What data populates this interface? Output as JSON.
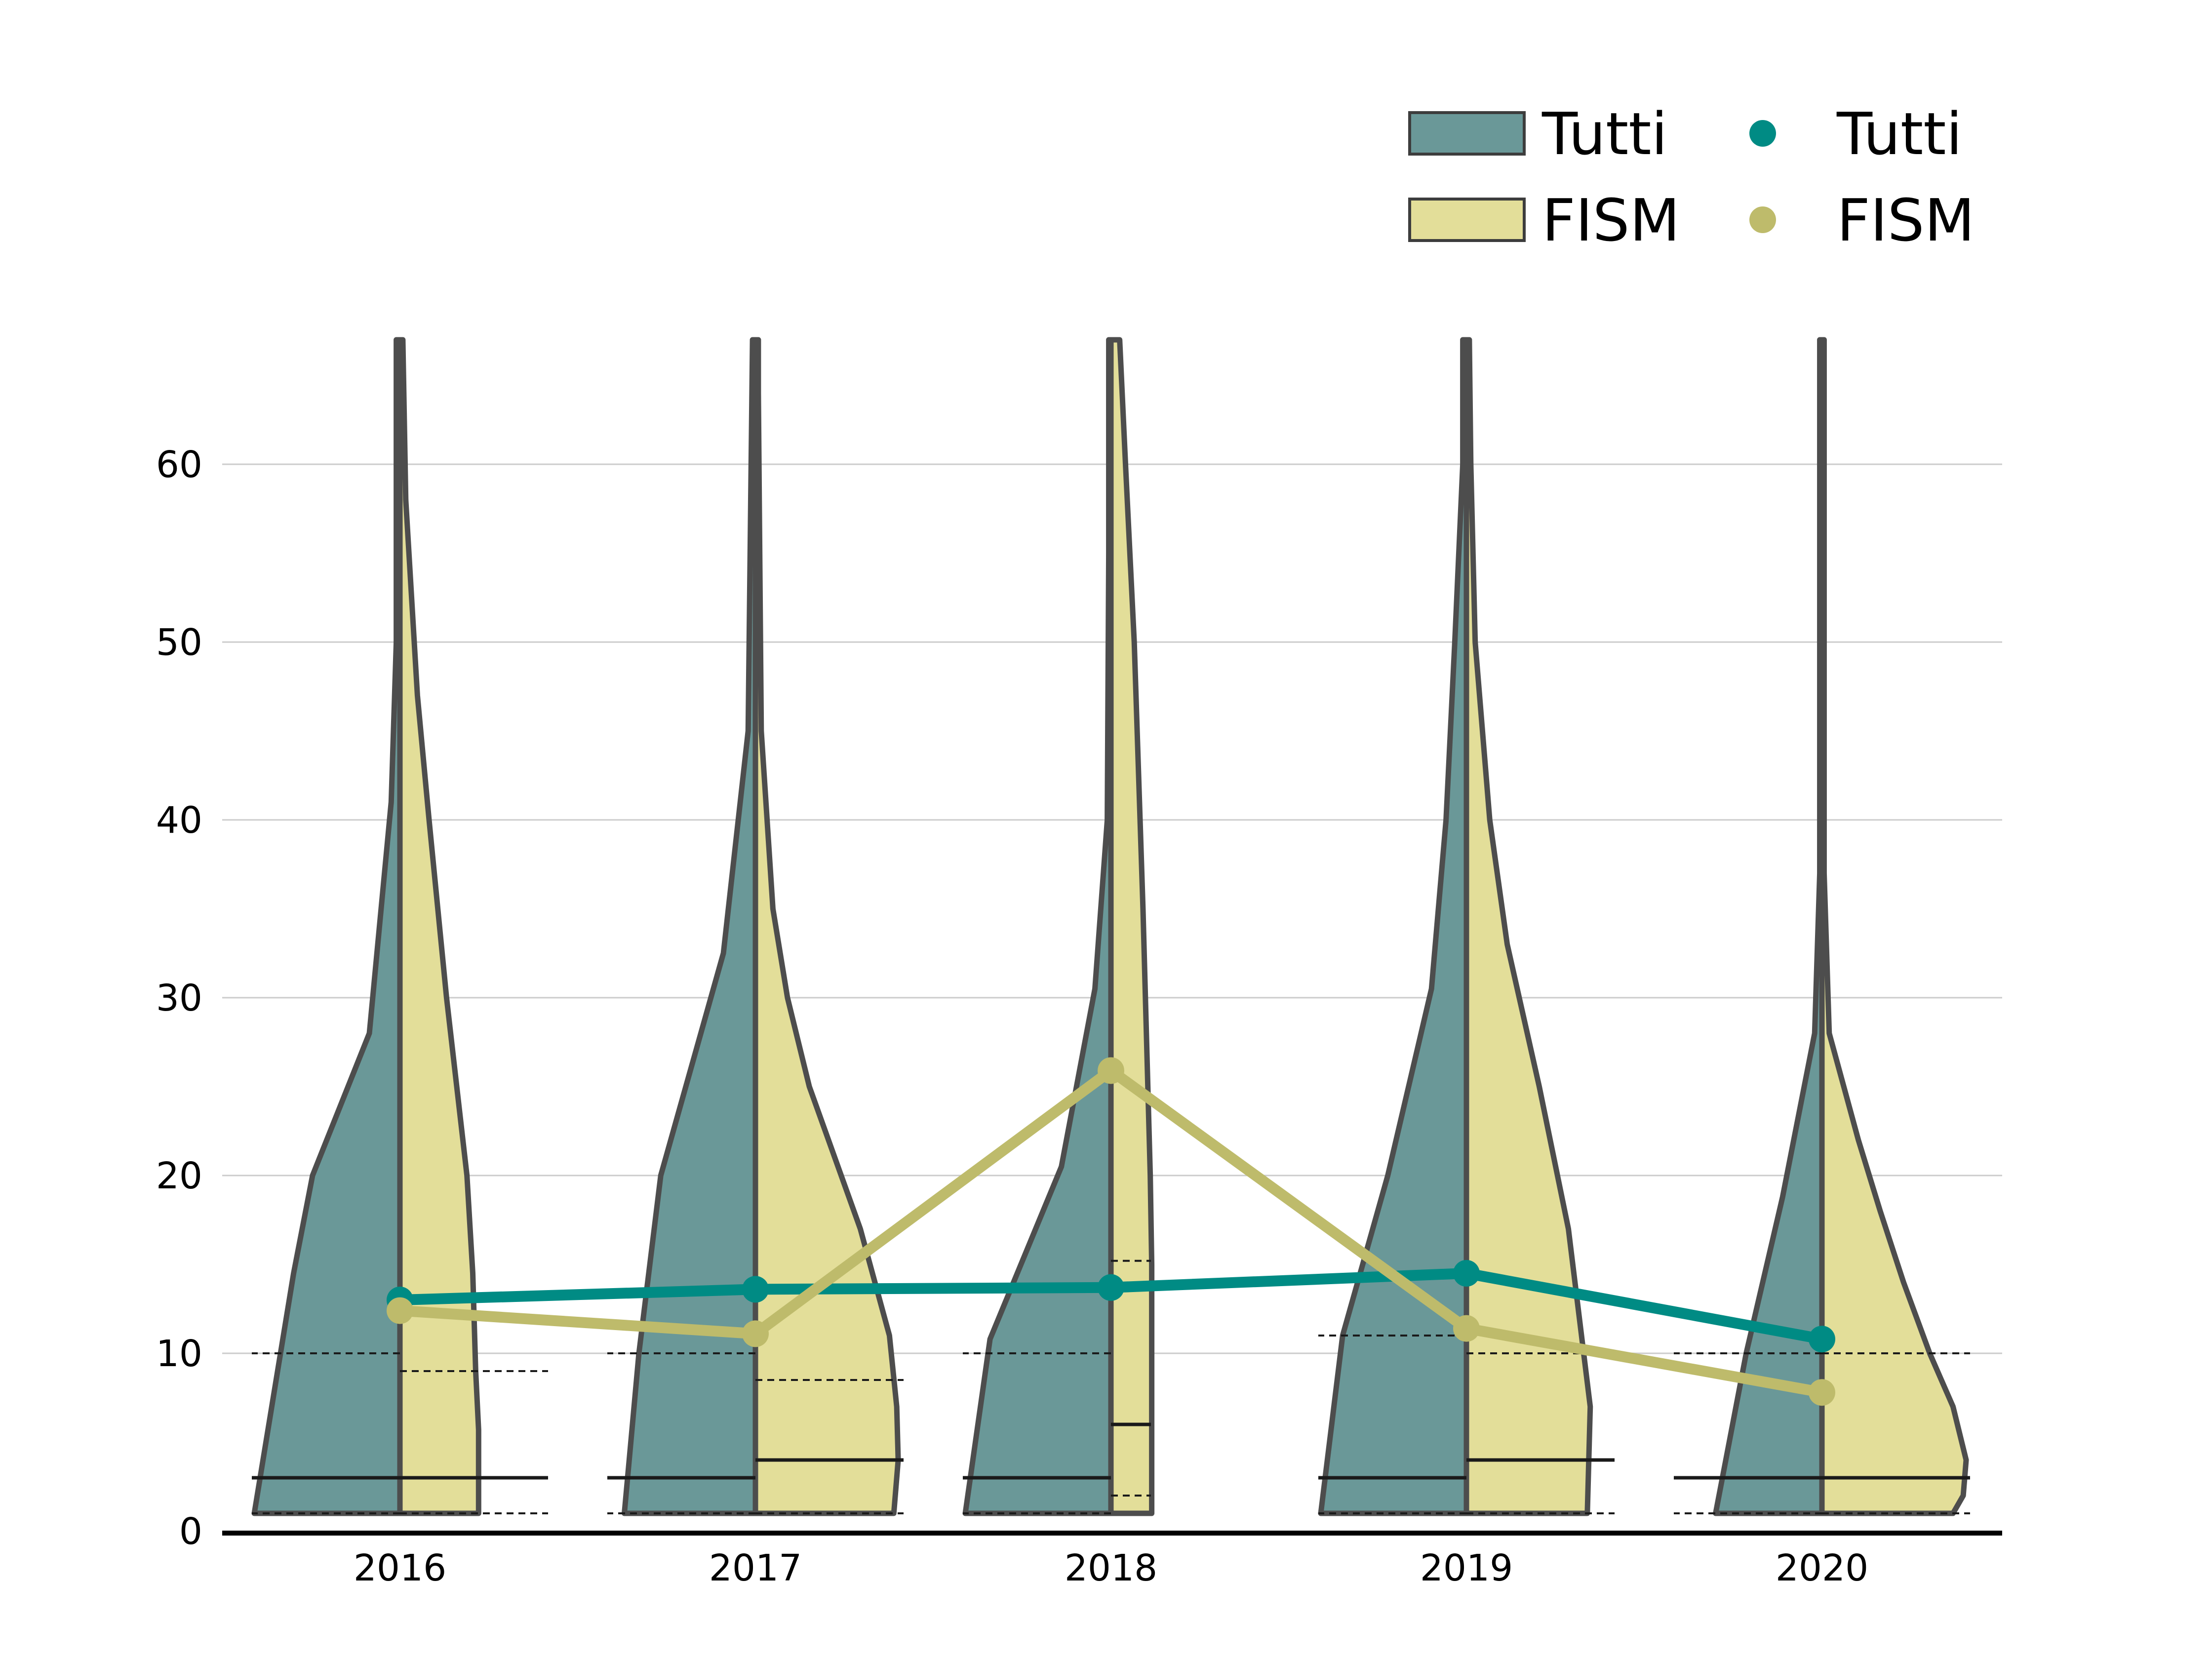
{
  "chart_data": {
    "type": "violin",
    "title": "",
    "xlabel": "",
    "ylabel": "",
    "categories": [
      "2016",
      "2017",
      "2018",
      "2019",
      "2020"
    ],
    "ylim": [
      0,
      67
    ],
    "yticks": [
      0,
      10,
      20,
      30,
      40,
      50,
      60
    ],
    "grid": "horizontal",
    "legend_position": "top-right",
    "colors": {
      "tutti_violin": "#6a9898",
      "fism_violin": "#e3de99",
      "violin_outline": "#4d4d4d",
      "tutti_line": "#008b84",
      "fism_line": "#bebb6b",
      "grid": "#cccccc",
      "quartile_line": "#1a1a1a"
    },
    "legend": [
      {
        "label": "Tutti",
        "kind": "patch",
        "color": "#6a9898"
      },
      {
        "label": "FISM",
        "kind": "patch",
        "color": "#e3de99"
      },
      {
        "label": "Tutti",
        "kind": "marker",
        "color": "#008b84"
      },
      {
        "label": "FISM",
        "kind": "marker",
        "color": "#bebb6b"
      }
    ],
    "series": [
      {
        "name": "Tutti",
        "kind": "line",
        "values": [
          13.0,
          13.6,
          13.7,
          14.5,
          10.8
        ]
      },
      {
        "name": "FISM",
        "kind": "line",
        "values": [
          12.4,
          11.1,
          25.9,
          11.4,
          7.8
        ]
      }
    ],
    "violins": [
      {
        "category": "2016",
        "tutti": {
          "profile": [
            [
              1,
              100
            ],
            [
              14.5,
              73
            ],
            [
              20,
              60
            ],
            [
              28,
              21
            ],
            [
              41,
              6
            ],
            [
              50,
              2.5
            ],
            [
              67,
              2.5
            ]
          ],
          "quartiles": [
            1,
            3,
            10
          ]
        },
        "fism": {
          "profile": [
            [
              1,
              54
            ],
            [
              5.7,
              54
            ],
            [
              9,
              52
            ],
            [
              14.5,
              50
            ],
            [
              20,
              46
            ],
            [
              30,
              32
            ],
            [
              40,
              20
            ],
            [
              47,
              12
            ],
            [
              58,
              4
            ],
            [
              67,
              2
            ]
          ],
          "quartiles": [
            1,
            3,
            9
          ]
        }
      },
      {
        "category": "2017",
        "tutti": {
          "profile": [
            [
              1,
              90
            ],
            [
              10,
              80
            ],
            [
              20,
              65
            ],
            [
              32.5,
              22
            ],
            [
              45,
              5
            ],
            [
              67,
              2
            ]
          ],
          "quartiles": [
            1,
            3,
            10
          ]
        },
        "fism": {
          "profile": [
            [
              1,
              95
            ],
            [
              4,
              98
            ],
            [
              7,
              97
            ],
            [
              11,
              92
            ],
            [
              17,
              72
            ],
            [
              25,
              37
            ],
            [
              30,
              22
            ],
            [
              35,
              12
            ],
            [
              45,
              4
            ],
            [
              64,
              2
            ],
            [
              67,
              2
            ]
          ],
          "quartiles": [
            1,
            4,
            8.5
          ]
        }
      },
      {
        "category": "2018",
        "tutti": {
          "profile": [
            [
              1,
              100
            ],
            [
              10.8,
              83
            ],
            [
              20.5,
              34
            ],
            [
              30.5,
              11
            ],
            [
              40,
              2.5
            ],
            [
              55,
              1.5
            ],
            [
              67,
              1.5
            ]
          ],
          "quartiles": [
            1,
            3,
            10
          ]
        },
        "fism": {
          "profile": [
            [
              1,
              28
            ],
            [
              15,
              28
            ],
            [
              20,
              27
            ],
            [
              35,
              22
            ],
            [
              50,
              16
            ],
            [
              60,
              10
            ],
            [
              67,
              6
            ]
          ],
          "quartiles": [
            2,
            6,
            15.2
          ]
        }
      },
      {
        "category": "2019",
        "tutti": {
          "profile": [
            [
              1,
              100
            ],
            [
              11,
              85
            ],
            [
              20,
              54
            ],
            [
              30.5,
              24
            ],
            [
              40,
              14
            ],
            [
              50,
              8
            ],
            [
              60,
              2.5
            ],
            [
              67,
              2.5
            ]
          ],
          "quartiles": [
            1,
            3,
            11
          ]
        },
        "fism": {
          "profile": [
            [
              1,
              83
            ],
            [
              7,
              85
            ],
            [
              17,
              70
            ],
            [
              25,
              50
            ],
            [
              33,
              28
            ],
            [
              40,
              16
            ],
            [
              50,
              6
            ],
            [
              60,
              3
            ],
            [
              67,
              2
            ]
          ],
          "quartiles": [
            1,
            4,
            10
          ]
        }
      },
      {
        "category": "2020",
        "tutti": {
          "profile": [
            [
              1,
              73
            ],
            [
              10,
              52
            ],
            [
              18.8,
              27
            ],
            [
              28,
              5
            ],
            [
              37,
              1.5
            ],
            [
              67,
              1.5
            ]
          ],
          "quartiles": [
            1,
            3,
            10
          ]
        },
        "fism": {
          "profile": [
            [
              1,
              90
            ],
            [
              2,
              97
            ],
            [
              4,
              99
            ],
            [
              7,
              90
            ],
            [
              10,
              74
            ],
            [
              14,
              56
            ],
            [
              18,
              40
            ],
            [
              22,
              25
            ],
            [
              28,
              5
            ],
            [
              37,
              1.5
            ],
            [
              67,
              1.5
            ]
          ],
          "quartiles": [
            1,
            3,
            10
          ]
        }
      }
    ]
  }
}
